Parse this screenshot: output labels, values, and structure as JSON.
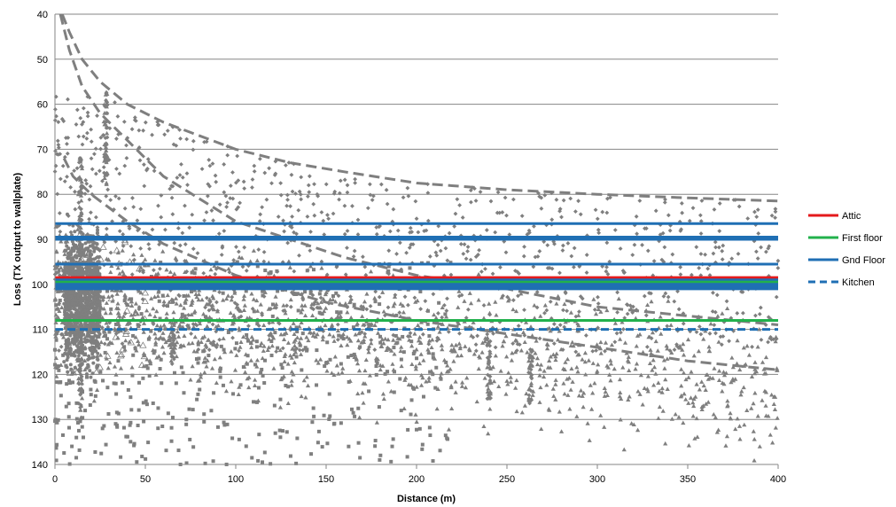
{
  "chart_data": {
    "type": "scatter",
    "title": "",
    "xlabel": "Distance  (m)",
    "ylabel": "Loss (TX output to wallplate)",
    "xlim": [
      0,
      400
    ],
    "ylim": [
      40,
      140
    ],
    "y_inverted": true,
    "x_ticks": [
      "0",
      "50",
      "100",
      "150",
      "200",
      "250",
      "300",
      "350",
      "400"
    ],
    "y_ticks": [
      "40",
      "50",
      "60",
      "70",
      "80",
      "90",
      "100",
      "110",
      "120",
      "130",
      "140"
    ],
    "grid": "horizontal",
    "legend_position": "right",
    "legend": [
      {
        "label": "Attic",
        "color": "#e41a1c",
        "style": "solid"
      },
      {
        "label": "First floor",
        "color": "#22b14c",
        "style": "solid"
      },
      {
        "label": "Gnd Floor",
        "color": "#1f6fb4",
        "style": "solid"
      },
      {
        "label": "Kitchen",
        "color": "#1f6fb4",
        "style": "dashed"
      }
    ],
    "reference_lines": [
      {
        "legend": "Gnd Floor",
        "y": 86.5
      },
      {
        "legend": "Gnd Floor",
        "y": 89.5
      },
      {
        "legend": "Gnd Floor",
        "y": 90.0
      },
      {
        "legend": "Gnd Floor",
        "y": 95.5
      },
      {
        "legend": "Attic",
        "y": 98.5
      },
      {
        "legend": "Gnd Floor",
        "y": 99.0
      },
      {
        "legend": "First floor",
        "y": 99.5
      },
      {
        "legend": "Gnd Floor",
        "y": 100.0
      },
      {
        "legend": "Gnd Floor",
        "y": 100.5
      },
      {
        "legend": "Gnd Floor",
        "y": 101.0
      },
      {
        "legend": "First floor",
        "y": 108.0
      },
      {
        "legend": "Kitchen",
        "y": 110.0
      }
    ],
    "path_loss_curves": [
      {
        "style": "dashed",
        "color": "#7f7f7f",
        "x": [
          4,
          8,
          15,
          25,
          40,
          60,
          80,
          100,
          130,
          160,
          200,
          250,
          300,
          350,
          400
        ],
        "y": [
          40,
          44,
          50,
          55,
          60,
          64,
          67,
          70,
          73,
          75,
          77.5,
          79,
          80,
          80.8,
          81.5
        ]
      },
      {
        "style": "dashed",
        "color": "#7f7f7f",
        "x": [
          3,
          8,
          15,
          25,
          40,
          60,
          80,
          100,
          130,
          160,
          200,
          250,
          300,
          350,
          400
        ],
        "y": [
          40,
          48,
          56,
          62,
          68,
          76,
          81,
          86,
          90,
          94,
          98,
          101,
          105,
          107,
          109
        ]
      },
      {
        "style": "dashed",
        "color": "#7f7f7f",
        "x": [
          5,
          10,
          20,
          40,
          60,
          100,
          150,
          200,
          250,
          300,
          350,
          400
        ],
        "y": [
          72,
          76,
          80,
          86,
          91,
          98,
          104,
          108,
          111,
          114,
          117,
          119
        ]
      }
    ],
    "scatter_series": [
      {
        "marker": "diamond",
        "color": "#7f7f7f",
        "count": 1100,
        "x_range": [
          0,
          400
        ],
        "y_range": [
          58,
          115
        ],
        "note_upper_bound_curve": 1
      },
      {
        "marker": "triangle",
        "color": "#7f7f7f",
        "count": 1300,
        "x_range": [
          0,
          400
        ],
        "y_range": [
          84,
          140
        ]
      },
      {
        "marker": "square",
        "color": "#7f7f7f",
        "count": 500,
        "x_range": [
          0,
          220
        ],
        "y_range": [
          95,
          140
        ]
      },
      {
        "marker": "circle",
        "color": "#7f7f7f",
        "count": 900,
        "x_range": [
          5,
          25
        ],
        "y_range": [
          70,
          125
        ]
      }
    ],
    "vertical_clusters": [
      {
        "x": 28,
        "y_from": 57,
        "y_to": 78
      },
      {
        "x": 14,
        "y_from": 72,
        "y_to": 130
      },
      {
        "x": 65,
        "y_from": 108,
        "y_to": 118
      },
      {
        "x": 240,
        "y_from": 112,
        "y_to": 126
      },
      {
        "x": 263,
        "y_from": 114,
        "y_to": 128
      }
    ]
  }
}
